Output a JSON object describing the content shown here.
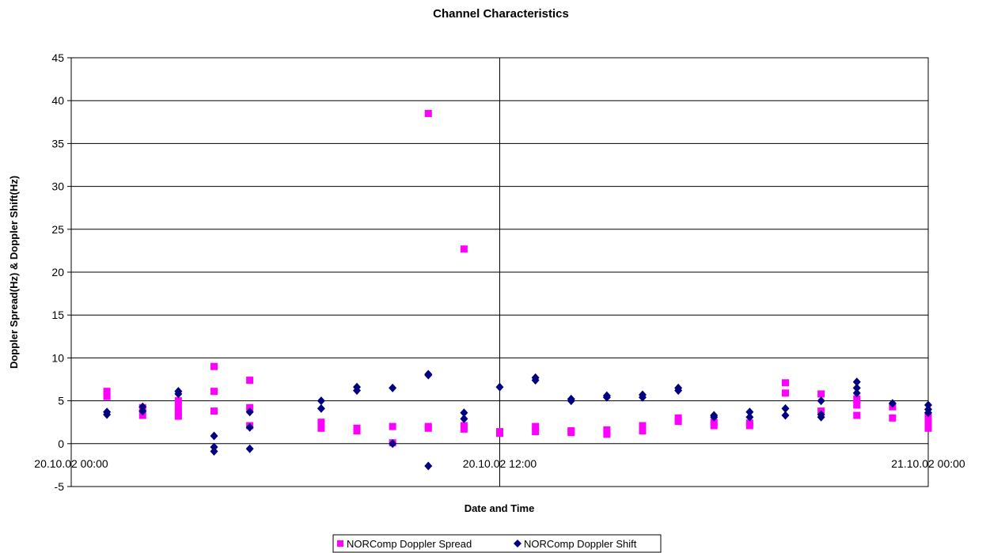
{
  "chart_data": {
    "type": "scatter",
    "title": "Channel Characteristics",
    "xlabel": "Date and Time",
    "ylabel": "Doppler Spread(Hz) & Doppler Shift(Hz)",
    "ylim": [
      -5,
      45
    ],
    "yticks": [
      -5,
      0,
      5,
      10,
      15,
      20,
      25,
      30,
      35,
      40,
      45
    ],
    "xlim": [
      "2002-10-20T00:00",
      "2002-10-21T00:00"
    ],
    "xticks": [
      {
        "x": "2002-10-20T00:00",
        "label": "20.10.02 00:00"
      },
      {
        "x": "2002-10-20T12:00",
        "label": "20.10.02 12:00"
      },
      {
        "x": "2002-10-21T00:00",
        "label": "21.10.02 00:00"
      }
    ],
    "grid": "horizontal major gridlines, vertical at tick marks",
    "legend_position": "bottom",
    "colors": {
      "spread": "#ff00ff",
      "shift": "#000080"
    },
    "series": [
      {
        "name": "NORComp Doppler Spread",
        "marker": "square",
        "color": "#ff00ff",
        "points": [
          [
            "2002-10-20T01:00",
            6.1
          ],
          [
            "2002-10-20T01:00",
            5.5
          ],
          [
            "2002-10-20T02:00",
            4.2
          ],
          [
            "2002-10-20T02:00",
            3.3
          ],
          [
            "2002-10-20T03:00",
            5.0
          ],
          [
            "2002-10-20T03:00",
            4.2
          ],
          [
            "2002-10-20T03:00",
            3.5
          ],
          [
            "2002-10-20T03:00",
            3.2
          ],
          [
            "2002-10-20T04:00",
            9.0
          ],
          [
            "2002-10-20T04:00",
            6.1
          ],
          [
            "2002-10-20T04:00",
            3.8
          ],
          [
            "2002-10-20T05:00",
            7.4
          ],
          [
            "2002-10-20T05:00",
            4.2
          ],
          [
            "2002-10-20T05:00",
            2.1
          ],
          [
            "2002-10-20T07:00",
            2.5
          ],
          [
            "2002-10-20T07:00",
            1.8
          ],
          [
            "2002-10-20T08:00",
            1.8
          ],
          [
            "2002-10-20T08:00",
            1.5
          ],
          [
            "2002-10-20T09:00",
            2.0
          ],
          [
            "2002-10-20T09:00",
            0.1
          ],
          [
            "2002-10-20T10:00",
            38.5
          ],
          [
            "2002-10-20T10:00",
            2.0
          ],
          [
            "2002-10-20T10:00",
            1.8
          ],
          [
            "2002-10-20T11:00",
            22.7
          ],
          [
            "2002-10-20T11:00",
            2.1
          ],
          [
            "2002-10-20T11:00",
            1.7
          ],
          [
            "2002-10-20T12:00",
            1.4
          ],
          [
            "2002-10-20T12:00",
            1.2
          ],
          [
            "2002-10-20T13:00",
            2.0
          ],
          [
            "2002-10-20T13:00",
            1.4
          ],
          [
            "2002-10-20T14:00",
            1.5
          ],
          [
            "2002-10-20T14:00",
            1.3
          ],
          [
            "2002-10-20T15:00",
            1.6
          ],
          [
            "2002-10-20T15:00",
            1.1
          ],
          [
            "2002-10-20T16:00",
            2.1
          ],
          [
            "2002-10-20T16:00",
            1.5
          ],
          [
            "2002-10-20T17:00",
            3.0
          ],
          [
            "2002-10-20T17:00",
            2.6
          ],
          [
            "2002-10-20T18:00",
            2.5
          ],
          [
            "2002-10-20T18:00",
            2.1
          ],
          [
            "2002-10-20T19:00",
            2.4
          ],
          [
            "2002-10-20T19:00",
            2.1
          ],
          [
            "2002-10-20T20:00",
            7.1
          ],
          [
            "2002-10-20T20:00",
            5.9
          ],
          [
            "2002-10-20T21:00",
            5.8
          ],
          [
            "2002-10-20T21:00",
            3.8
          ],
          [
            "2002-10-20T22:00",
            5.2
          ],
          [
            "2002-10-20T22:00",
            4.5
          ],
          [
            "2002-10-20T22:00",
            3.3
          ],
          [
            "2002-10-20T23:00",
            4.3
          ],
          [
            "2002-10-20T23:00",
            3.0
          ],
          [
            "2002-10-21T00:00",
            3.2
          ],
          [
            "2002-10-21T00:00",
            2.6
          ],
          [
            "2002-10-21T00:00",
            2.1
          ],
          [
            "2002-10-21T00:00",
            1.8
          ]
        ]
      },
      {
        "name": "NORComp Doppler Shift",
        "marker": "diamond",
        "color": "#000080",
        "points": [
          [
            "2002-10-20T01:00",
            3.7
          ],
          [
            "2002-10-20T01:00",
            3.4
          ],
          [
            "2002-10-20T02:00",
            4.3
          ],
          [
            "2002-10-20T02:00",
            3.8
          ],
          [
            "2002-10-20T03:00",
            6.1
          ],
          [
            "2002-10-20T03:00",
            5.8
          ],
          [
            "2002-10-20T04:00",
            0.9
          ],
          [
            "2002-10-20T04:00",
            -0.4
          ],
          [
            "2002-10-20T04:00",
            -0.9
          ],
          [
            "2002-10-20T05:00",
            3.7
          ],
          [
            "2002-10-20T05:00",
            1.9
          ],
          [
            "2002-10-20T05:00",
            -0.6
          ],
          [
            "2002-10-20T07:00",
            5.0
          ],
          [
            "2002-10-20T07:00",
            4.1
          ],
          [
            "2002-10-20T08:00",
            6.6
          ],
          [
            "2002-10-20T08:00",
            6.2
          ],
          [
            "2002-10-20T09:00",
            6.5
          ],
          [
            "2002-10-20T09:00",
            0.0
          ],
          [
            "2002-10-20T10:00",
            8.1
          ],
          [
            "2002-10-20T10:00",
            8.0
          ],
          [
            "2002-10-20T10:00",
            -2.6
          ],
          [
            "2002-10-20T11:00",
            3.6
          ],
          [
            "2002-10-20T11:00",
            2.9
          ],
          [
            "2002-10-20T12:00",
            6.6
          ],
          [
            "2002-10-20T13:00",
            7.7
          ],
          [
            "2002-10-20T13:00",
            7.4
          ],
          [
            "2002-10-20T14:00",
            5.2
          ],
          [
            "2002-10-20T14:00",
            5.0
          ],
          [
            "2002-10-20T15:00",
            5.6
          ],
          [
            "2002-10-20T15:00",
            5.4
          ],
          [
            "2002-10-20T16:00",
            5.7
          ],
          [
            "2002-10-20T16:00",
            5.4
          ],
          [
            "2002-10-20T17:00",
            6.5
          ],
          [
            "2002-10-20T17:00",
            6.2
          ],
          [
            "2002-10-20T18:00",
            3.3
          ],
          [
            "2002-10-20T18:00",
            3.1
          ],
          [
            "2002-10-20T19:00",
            3.7
          ],
          [
            "2002-10-20T19:00",
            3.1
          ],
          [
            "2002-10-20T20:00",
            4.1
          ],
          [
            "2002-10-20T20:00",
            3.3
          ],
          [
            "2002-10-20T21:00",
            5.0
          ],
          [
            "2002-10-20T21:00",
            3.4
          ],
          [
            "2002-10-20T21:00",
            3.1
          ],
          [
            "2002-10-20T22:00",
            7.2
          ],
          [
            "2002-10-20T22:00",
            6.5
          ],
          [
            "2002-10-20T22:00",
            5.9
          ],
          [
            "2002-10-20T23:00",
            4.7
          ],
          [
            "2002-10-21T00:00",
            4.5
          ],
          [
            "2002-10-21T00:00",
            4.0
          ],
          [
            "2002-10-21T00:00",
            3.6
          ]
        ]
      }
    ]
  }
}
